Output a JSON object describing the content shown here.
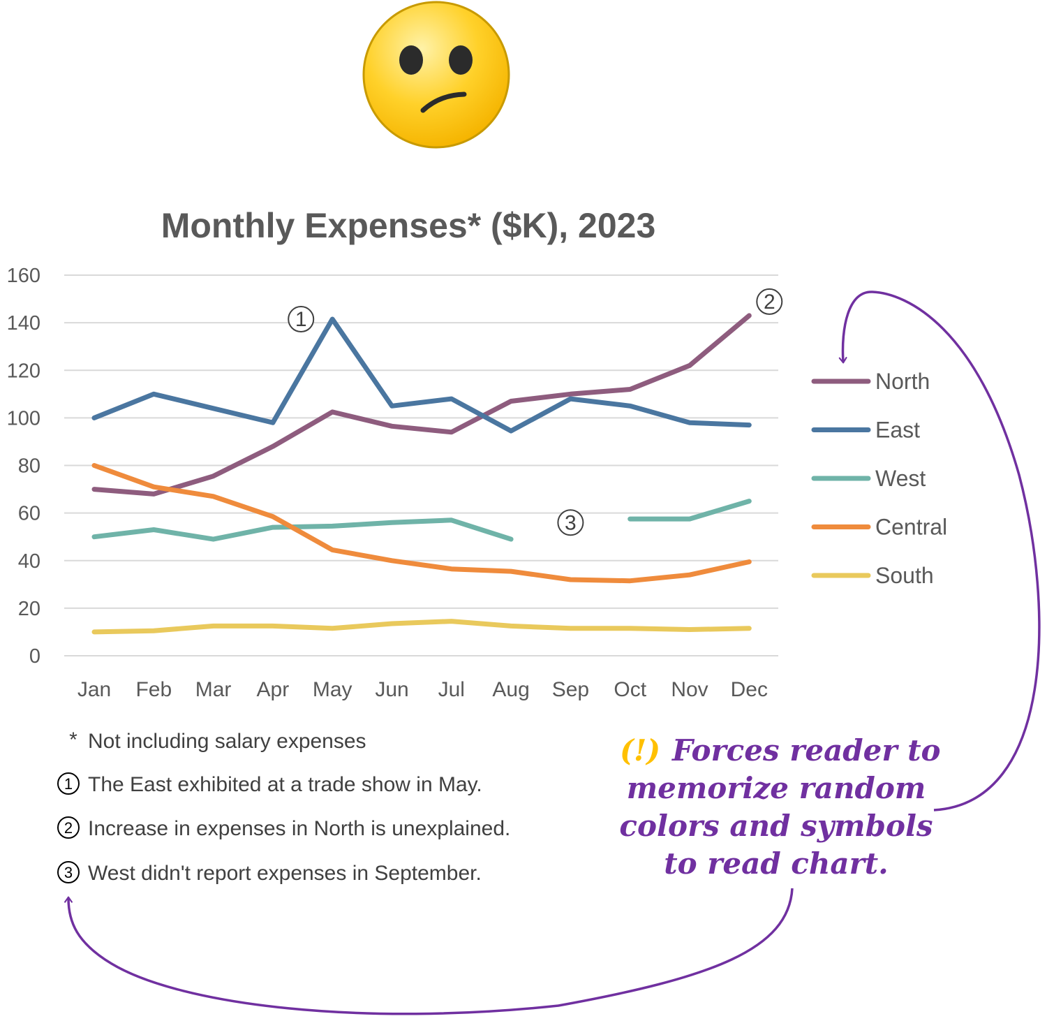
{
  "chart_data": {
    "type": "line",
    "title": "Monthly Expenses* ($K), 2023",
    "categories": [
      "Jan",
      "Feb",
      "Mar",
      "Apr",
      "May",
      "Jun",
      "Jul",
      "Aug",
      "Sep",
      "Oct",
      "Nov",
      "Dec"
    ],
    "ylim": [
      0,
      160
    ],
    "yticks": [
      "0",
      "20",
      "40",
      "60",
      "80",
      "100",
      "120",
      "140",
      "160"
    ],
    "grid": true,
    "legend_position": "right",
    "series": [
      {
        "name": "North",
        "color": "#8e5c7e",
        "values": [
          70,
          68,
          75.5,
          88,
          102.5,
          96.5,
          94,
          107,
          110,
          112,
          122,
          143
        ]
      },
      {
        "name": "East",
        "color": "#4a76a0",
        "values": [
          100,
          110,
          104,
          98,
          141.5,
          105,
          108,
          94.5,
          108,
          105,
          98,
          97
        ]
      },
      {
        "name": "West",
        "color": "#6fb3a8",
        "values": [
          50,
          53,
          49,
          54,
          54.5,
          56,
          57,
          49,
          null,
          57.5,
          57.5,
          65
        ]
      },
      {
        "name": "Central",
        "color": "#ef8b3c",
        "values": [
          80,
          71,
          67,
          58.5,
          44.5,
          40,
          36.5,
          35.5,
          32,
          31.5,
          34,
          39.5
        ]
      },
      {
        "name": "South",
        "color": "#e9c95c",
        "values": [
          10,
          10.5,
          12.5,
          12.5,
          11.5,
          13.5,
          14.5,
          12.5,
          11.5,
          11.5,
          11,
          11.5
        ]
      }
    ],
    "markers": [
      {
        "symbol": "①",
        "series": "East",
        "category": "May"
      },
      {
        "symbol": "②",
        "series": "North",
        "category": "Dec"
      },
      {
        "symbol": "③",
        "series": "West",
        "category": "Sep"
      }
    ]
  },
  "footnotes": [
    {
      "symbol": "*",
      "text": "Not including salary expenses"
    },
    {
      "symbol": "①",
      "text": "The East exhibited at a trade show in May."
    },
    {
      "symbol": "②",
      "text": "Increase in expenses in North is unexplained."
    },
    {
      "symbol": "③",
      "text": "West didn't report expenses in September."
    }
  ],
  "callout": {
    "icon": "(!)",
    "lines": [
      "Forces reader to",
      "memorize random",
      "colors and symbols",
      "to read chart."
    ]
  },
  "emoji": "confused-face-icon",
  "colors": {
    "grid": "#d9d9d9",
    "axis_text": "#595959",
    "callout": "#7030a0",
    "warning": "#ffc000"
  }
}
